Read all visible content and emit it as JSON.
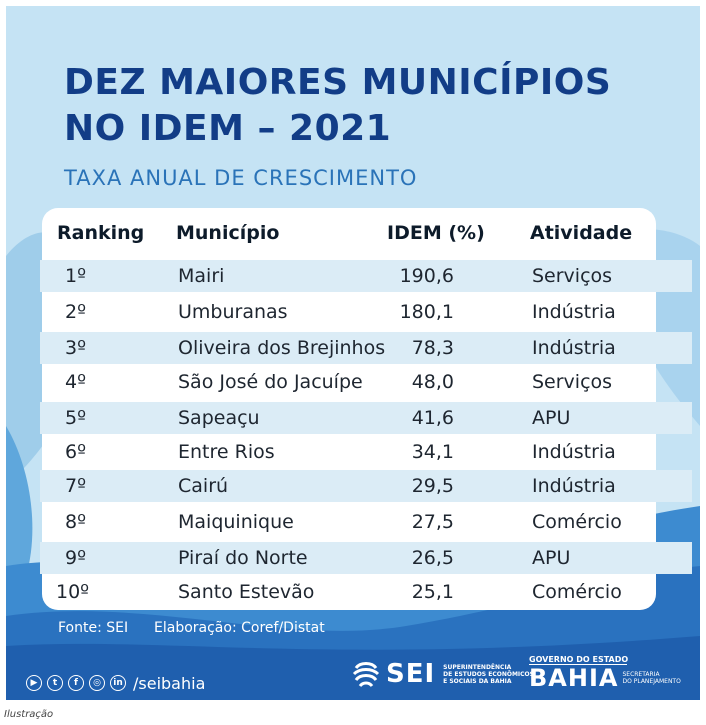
{
  "poster": {
    "title_line1": "DEZ MAIORES MUNICÍPIOS",
    "title_line2": "NO IDEM – 2021",
    "subtitle": "TAXA ANUAL DE CRESCIMENTO"
  },
  "table": {
    "headers": {
      "rank": "Ranking",
      "municipio": "Município",
      "idem": "IDEM (%)",
      "atividade": "Atividade"
    },
    "rows": [
      {
        "rank": "1º",
        "municipio": "Mairi",
        "idem": "190,6",
        "atividade": "Serviços"
      },
      {
        "rank": "2º",
        "municipio": "Umburanas",
        "idem": "180,1",
        "atividade": "Indústria"
      },
      {
        "rank": "3º",
        "municipio": "Oliveira dos Brejinhos",
        "idem": "78,3",
        "atividade": "Indústria"
      },
      {
        "rank": "4º",
        "municipio": "São José do Jacuípe",
        "idem": "48,0",
        "atividade": "Serviços"
      },
      {
        "rank": "5º",
        "municipio": "Sapeaçu",
        "idem": "41,6",
        "atividade": "APU"
      },
      {
        "rank": "6º",
        "municipio": "Entre Rios",
        "idem": "34,1",
        "atividade": "Indústria"
      },
      {
        "rank": "7º",
        "municipio": "Cairú",
        "idem": "29,5",
        "atividade": "Indústria"
      },
      {
        "rank": "8º",
        "municipio": "Maiquinique",
        "idem": "27,5",
        "atividade": "Comércio"
      },
      {
        "rank": "9º",
        "municipio": "Piraí do Norte",
        "idem": "26,5",
        "atividade": "APU"
      },
      {
        "rank": "10º",
        "municipio": "Santo Estevão",
        "idem": "25,1",
        "atividade": "Comércio"
      }
    ]
  },
  "footer": {
    "fonte": "Fonte: SEI",
    "elaboracao": "Elaboração: Coref/Distat",
    "social_icons": [
      "youtube-icon",
      "twitter-icon",
      "facebook-icon",
      "instagram-icon",
      "linkedin-icon"
    ],
    "social_glyphs": [
      "▶",
      "t",
      "f",
      "◎",
      "in"
    ],
    "handle": "/seibahia"
  },
  "logos": {
    "sei_name": "SEI",
    "sei_desc_1": "SUPERINTENDÊNCIA",
    "sei_desc_2": "DE ESTUDOS ECONÔMICOS",
    "sei_desc_3": "E SOCIAIS DA BAHIA",
    "gov_line": "GOVERNO DO ESTADO",
    "bahia_word": "BAHIA",
    "secretaria_1": "SECRETARIA",
    "secretaria_2": "DO PLANEJAMENTO"
  },
  "caption": "Ilustração",
  "colors": {
    "title": "#123d87",
    "subtitle": "#2a73b8",
    "background": "#c5e3f4",
    "row_shade": "#dbecf6",
    "footer_band": "#1f5fae"
  }
}
